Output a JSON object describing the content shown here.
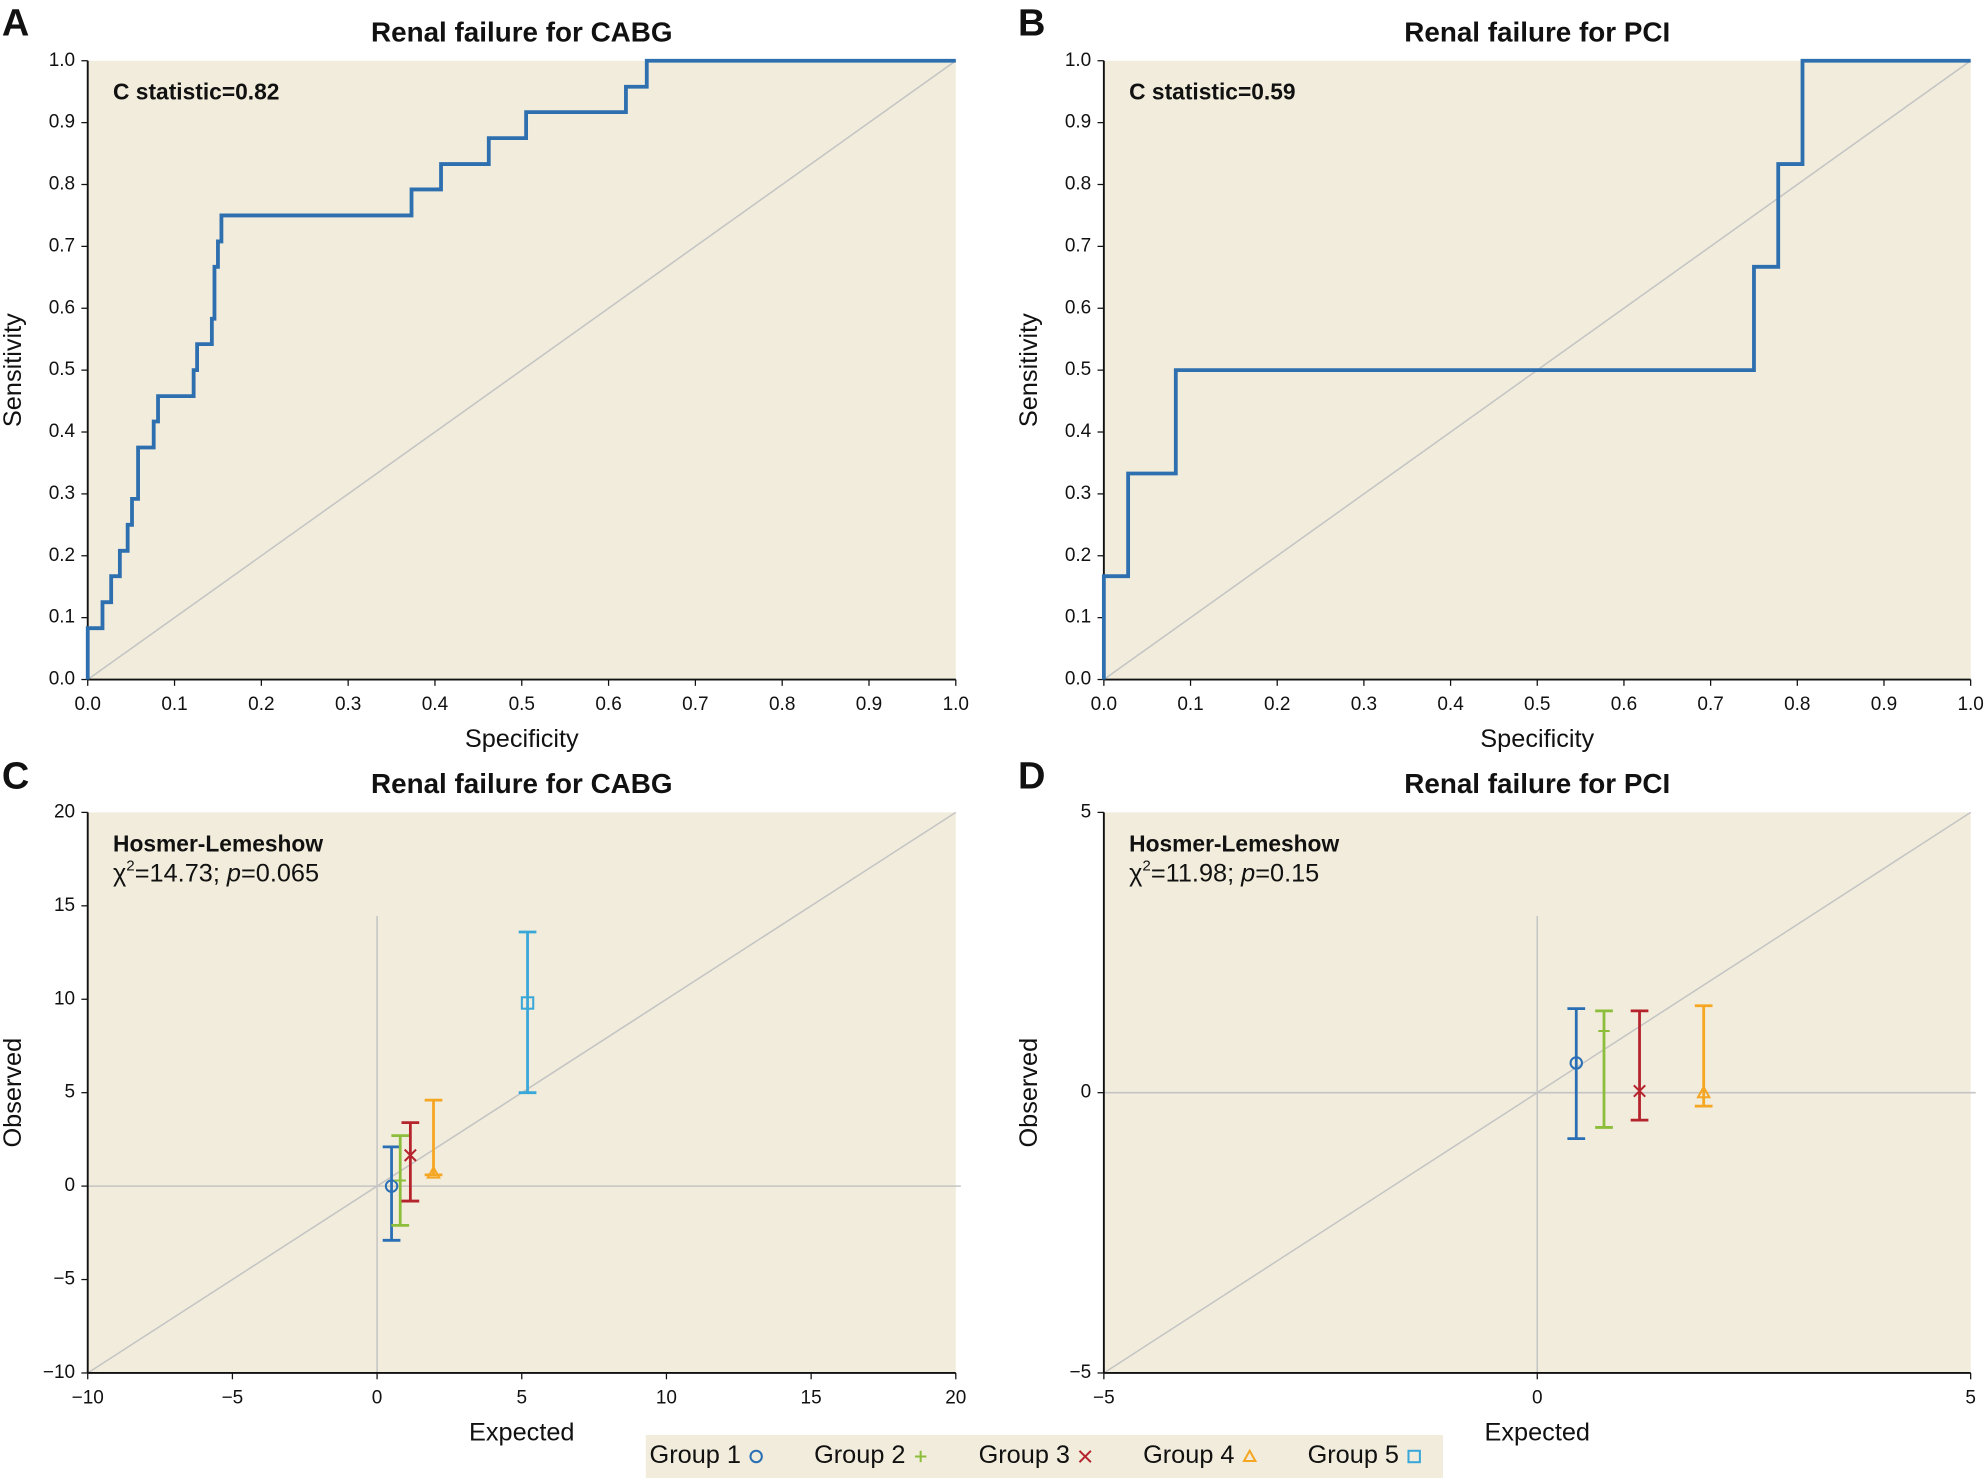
{
  "chart_data": [
    {
      "type": "line",
      "panel_label": "A",
      "title": "Renal failure for CABG",
      "annotation": "C statistic=0.82",
      "xlabel": "Specificity",
      "ylabel": "Sensitivity",
      "xlim": [
        0,
        1
      ],
      "ylim": [
        0,
        1
      ],
      "xticks": [
        {
          "value": 0,
          "label": "0.0"
        },
        0.1,
        0.2,
        0.3,
        0.4,
        0.5,
        0.6,
        0.7,
        0.8,
        0.9,
        {
          "value": 1,
          "label": "1.0"
        }
      ],
      "yticks": [
        {
          "value": 0,
          "label": "0.0"
        },
        0.1,
        0.2,
        0.3,
        0.4,
        0.5,
        0.6,
        0.7,
        0.8,
        0.9,
        {
          "value": 1,
          "label": "1.0"
        }
      ],
      "series": [
        {
          "color": "#2e6fb0",
          "x": [
            0,
            0,
            0.017,
            0.017,
            0.027,
            0.027,
            0.037,
            0.037,
            0.046,
            0.046,
            0.051,
            0.051,
            0.058,
            0.058,
            0.076,
            0.076,
            0.081,
            0.081,
            0.122,
            0.122,
            0.126,
            0.126,
            0.143,
            0.143,
            0.146,
            0.146,
            0.15,
            0.15,
            0.154,
            0.154,
            0.373,
            0.373,
            0.407,
            0.407,
            0.462,
            0.462,
            0.505,
            0.505,
            0.62,
            0.62,
            0.644,
            0.644,
            1
          ],
          "values": [
            0,
            0.083,
            0.083,
            0.125,
            0.125,
            0.167,
            0.167,
            0.208,
            0.208,
            0.25,
            0.25,
            0.292,
            0.292,
            0.375,
            0.375,
            0.417,
            0.417,
            0.458,
            0.458,
            0.5,
            0.5,
            0.542,
            0.542,
            0.583,
            0.583,
            0.667,
            0.667,
            0.708,
            0.708,
            0.75,
            0.75,
            0.792,
            0.792,
            0.833,
            0.833,
            0.875,
            0.875,
            0.917,
            0.917,
            0.958,
            0.958,
            1,
            1
          ]
        }
      ]
    },
    {
      "type": "line",
      "panel_label": "B",
      "title": "Renal failure for PCI",
      "annotation": "C statistic=0.59",
      "xlabel": "Specificity",
      "ylabel": "Sensitivity",
      "xlim": [
        0,
        1
      ],
      "ylim": [
        0,
        1
      ],
      "xticks": [
        {
          "value": 0,
          "label": "0.0"
        },
        0.1,
        0.2,
        0.3,
        0.4,
        0.5,
        0.6,
        0.7,
        0.8,
        0.9,
        {
          "value": 1,
          "label": "1.0"
        }
      ],
      "yticks": [
        {
          "value": 0,
          "label": "0.0"
        },
        0.1,
        0.2,
        0.3,
        0.4,
        0.5,
        0.6,
        0.7,
        0.8,
        0.9,
        {
          "value": 1,
          "label": "1.0"
        }
      ],
      "series": [
        {
          "color": "#2e6fb0",
          "x": [
            0,
            0,
            0.028,
            0.028,
            0.083,
            0.083,
            0.75,
            0.75,
            0.778,
            0.778,
            0.806,
            0.806,
            1
          ],
          "values": [
            0,
            0.167,
            0.167,
            0.333,
            0.333,
            0.5,
            0.5,
            0.667,
            0.667,
            0.833,
            0.833,
            1,
            1
          ]
        }
      ]
    },
    {
      "type": "errorbar",
      "panel_label": "C",
      "title": "Renal failure for CABG",
      "annotation": "Hosmer-Lemeshow",
      "stat": {
        "chi": "χ",
        "chi_exponent": "2",
        "chi_value": "=14.73; ",
        "p": "p",
        "p_value": "=0.065"
      },
      "xlabel": "Expected",
      "ylabel": "Observed",
      "xlim": [
        -10,
        20
      ],
      "ylim": [
        -10,
        20
      ],
      "xticks": [
        {
          "value": -10,
          "label": "−10"
        },
        {
          "value": -5,
          "label": "−5"
        },
        0,
        5,
        10,
        15,
        20
      ],
      "yticks": [
        {
          "value": -10,
          "label": "−10"
        },
        {
          "value": -5,
          "label": "−5"
        },
        0,
        5,
        10,
        15,
        20
      ],
      "series": [
        {
          "name": "Group 1",
          "color": "#2a6fb5",
          "marker": "circle",
          "x": [
            0.5
          ],
          "values": [
            0
          ],
          "low": [
            -2.9
          ],
          "high": [
            2.1
          ]
        },
        {
          "name": "Group 2",
          "color": "#8dbe3b",
          "marker": "plus",
          "x": [
            0.8
          ],
          "values": [
            0.3
          ],
          "low": [
            -2.1
          ],
          "high": [
            2.7
          ]
        },
        {
          "name": "Group 3",
          "color": "#b5232d",
          "marker": "cross",
          "x": [
            1.15
          ],
          "values": [
            1.65
          ],
          "low": [
            -0.8
          ],
          "high": [
            3.4
          ]
        },
        {
          "name": "Group 4",
          "color": "#f5a623",
          "marker": "triangle",
          "x": [
            1.95
          ],
          "values": [
            0.7
          ],
          "low": [
            0.6
          ],
          "high": [
            4.6
          ]
        },
        {
          "name": "Group 5",
          "color": "#3aa7d9",
          "marker": "square",
          "x": [
            5.2
          ],
          "values": [
            9.8
          ],
          "low": [
            5
          ],
          "high": [
            13.6
          ]
        }
      ]
    },
    {
      "type": "errorbar",
      "panel_label": "D",
      "title": "Renal failure for PCI",
      "annotation": "Hosmer-Lemeshow",
      "stat": {
        "chi": "χ",
        "chi_exponent": "2",
        "chi_value": "=11.98; ",
        "p": "p",
        "p_value": "=0.15"
      },
      "xlabel": "Expected",
      "ylabel": "Observed",
      "xlim": [
        -5,
        5
      ],
      "ylim": [
        -5,
        5
      ],
      "xticks": [
        {
          "value": -5,
          "label": "−5"
        },
        0,
        5
      ],
      "yticks": [
        {
          "value": -5,
          "label": "−5"
        },
        0,
        5
      ],
      "series": [
        {
          "color": "#2a6fb5",
          "marker": "circle",
          "x": [
            0.45
          ],
          "values": [
            0.53
          ],
          "low": [
            -0.82
          ],
          "high": [
            1.5
          ]
        },
        {
          "color": "#8dbe3b",
          "marker": "plus",
          "x": [
            0.77
          ],
          "values": [
            1.1
          ],
          "low": [
            -0.62
          ],
          "high": [
            1.46
          ]
        },
        {
          "color": "#b5232d",
          "marker": "cross",
          "x": [
            1.18
          ],
          "values": [
            0.03
          ],
          "low": [
            -0.49
          ],
          "high": [
            1.46
          ]
        },
        {
          "color": "#f5a623",
          "marker": "triangle",
          "x": [
            1.92
          ],
          "values": [
            0
          ],
          "low": [
            -0.24
          ],
          "high": [
            1.55
          ]
        }
      ]
    }
  ]
}
